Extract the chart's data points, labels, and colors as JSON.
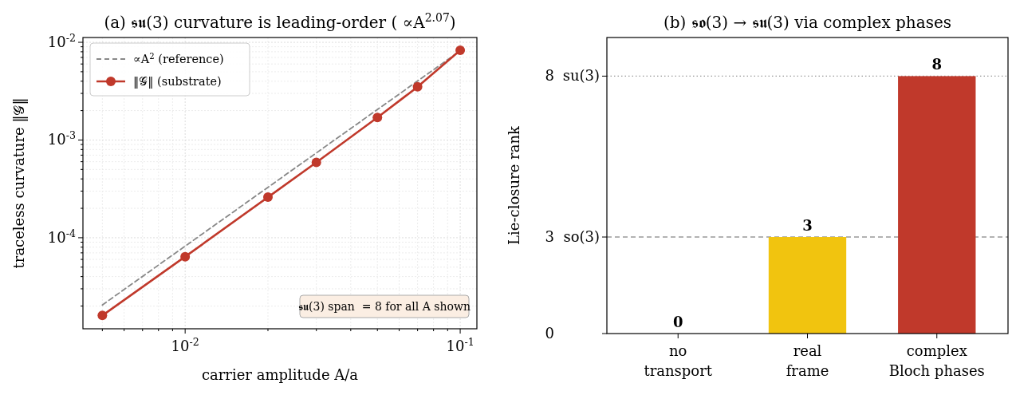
{
  "chart_data": [
    {
      "type": "line",
      "title": "(a) 𝖘𝖚(3) curvature is leading-order ( ∝A$^{2.07}$)",
      "xlabel": "carrier amplitude A/a",
      "ylabel": "traceless curvature ‖𝒢‖",
      "log": "xy",
      "grid": true,
      "legend": "top left",
      "xlim": [
        0.00425,
        0.115
      ],
      "ylim": [
        1.17e-05,
        0.0112
      ],
      "xticks": [
        {
          "value": 0.005,
          "label": null
        },
        {
          "value": 0.006,
          "label": null
        },
        {
          "value": 0.007,
          "label": null
        },
        {
          "value": 0.008,
          "label": null
        },
        {
          "value": 0.009,
          "label": null
        },
        {
          "value": 0.01,
          "label": "10$^{-2}$"
        },
        {
          "value": 0.02,
          "label": null
        },
        {
          "value": 0.03,
          "label": null
        },
        {
          "value": 0.04,
          "label": null
        },
        {
          "value": 0.05,
          "label": null
        },
        {
          "value": 0.06,
          "label": null
        },
        {
          "value": 0.07,
          "label": null
        },
        {
          "value": 0.08,
          "label": null
        },
        {
          "value": 0.09,
          "label": null
        },
        {
          "value": 0.1,
          "label": "10$^{-1}$"
        }
      ],
      "yticks": [
        {
          "value": 2e-05,
          "label": null
        },
        {
          "value": 3e-05,
          "label": null
        },
        {
          "value": 4e-05,
          "label": null
        },
        {
          "value": 5e-05,
          "label": null
        },
        {
          "value": 6e-05,
          "label": null
        },
        {
          "value": 7e-05,
          "label": null
        },
        {
          "value": 8e-05,
          "label": null
        },
        {
          "value": 9e-05,
          "label": null
        },
        {
          "value": 0.0001,
          "label": "10$^{-4}$"
        },
        {
          "value": 0.0002,
          "label": null
        },
        {
          "value": 0.0003,
          "label": null
        },
        {
          "value": 0.0004,
          "label": null
        },
        {
          "value": 0.0005,
          "label": null
        },
        {
          "value": 0.0006,
          "label": null
        },
        {
          "value": 0.0007,
          "label": null
        },
        {
          "value": 0.0008,
          "label": null
        },
        {
          "value": 0.0009,
          "label": null
        },
        {
          "value": 0.001,
          "label": "10$^{-3}$"
        },
        {
          "value": 0.002,
          "label": null
        },
        {
          "value": 0.003,
          "label": null
        },
        {
          "value": 0.004,
          "label": null
        },
        {
          "value": 0.005,
          "label": null
        },
        {
          "value": 0.006,
          "label": null
        },
        {
          "value": 0.007,
          "label": null
        },
        {
          "value": 0.008,
          "label": null
        },
        {
          "value": 0.009,
          "label": null
        },
        {
          "value": 0.01,
          "label": "10$^{-2}$"
        }
      ],
      "series": [
        {
          "name": "∝A$^{2}$ (reference)",
          "color": "#888888",
          "line_style": "dashed",
          "marker": "none",
          "x": [
            0.005,
            0.1
          ],
          "values": [
            2.05e-05,
            0.0082
          ]
        },
        {
          "name": "‖𝒢‖ (substrate)",
          "color": "#c0392b",
          "line_style": "solid",
          "marker": "circle",
          "x": [
            0.005,
            0.01,
            0.02,
            0.03,
            0.05,
            0.07,
            0.1
          ],
          "values": [
            1.6e-05,
            6.4e-05,
            0.00026,
            0.00059,
            0.0017,
            0.0035,
            0.0083
          ]
        }
      ],
      "annotations": [
        "𝖘𝖚(3) span  = 8 for all A shown"
      ]
    },
    {
      "type": "bar",
      "title": "(b) 𝖘𝖔(3) → 𝖘𝖚(3) via complex phases",
      "ylabel": "Lie-closure rank",
      "categories": [
        "no\ntransport",
        "real\nframe",
        "complex\nBloch phases"
      ],
      "values": [
        0,
        3,
        8
      ],
      "colors": [
        "#7f8c8d",
        "#f1c40f",
        "#c0392b"
      ],
      "ylim": [
        0,
        9.2
      ],
      "yticks": [
        0,
        3,
        8
      ],
      "data_labels": true,
      "ref_lines": [
        {
          "axis": "y",
          "value": 3,
          "label": "so(3)",
          "color": "#999999",
          "line_style": "dashed"
        },
        {
          "axis": "y",
          "value": 8,
          "label": "su(3)",
          "color": "#999999",
          "line_style": "dotted"
        }
      ]
    }
  ]
}
